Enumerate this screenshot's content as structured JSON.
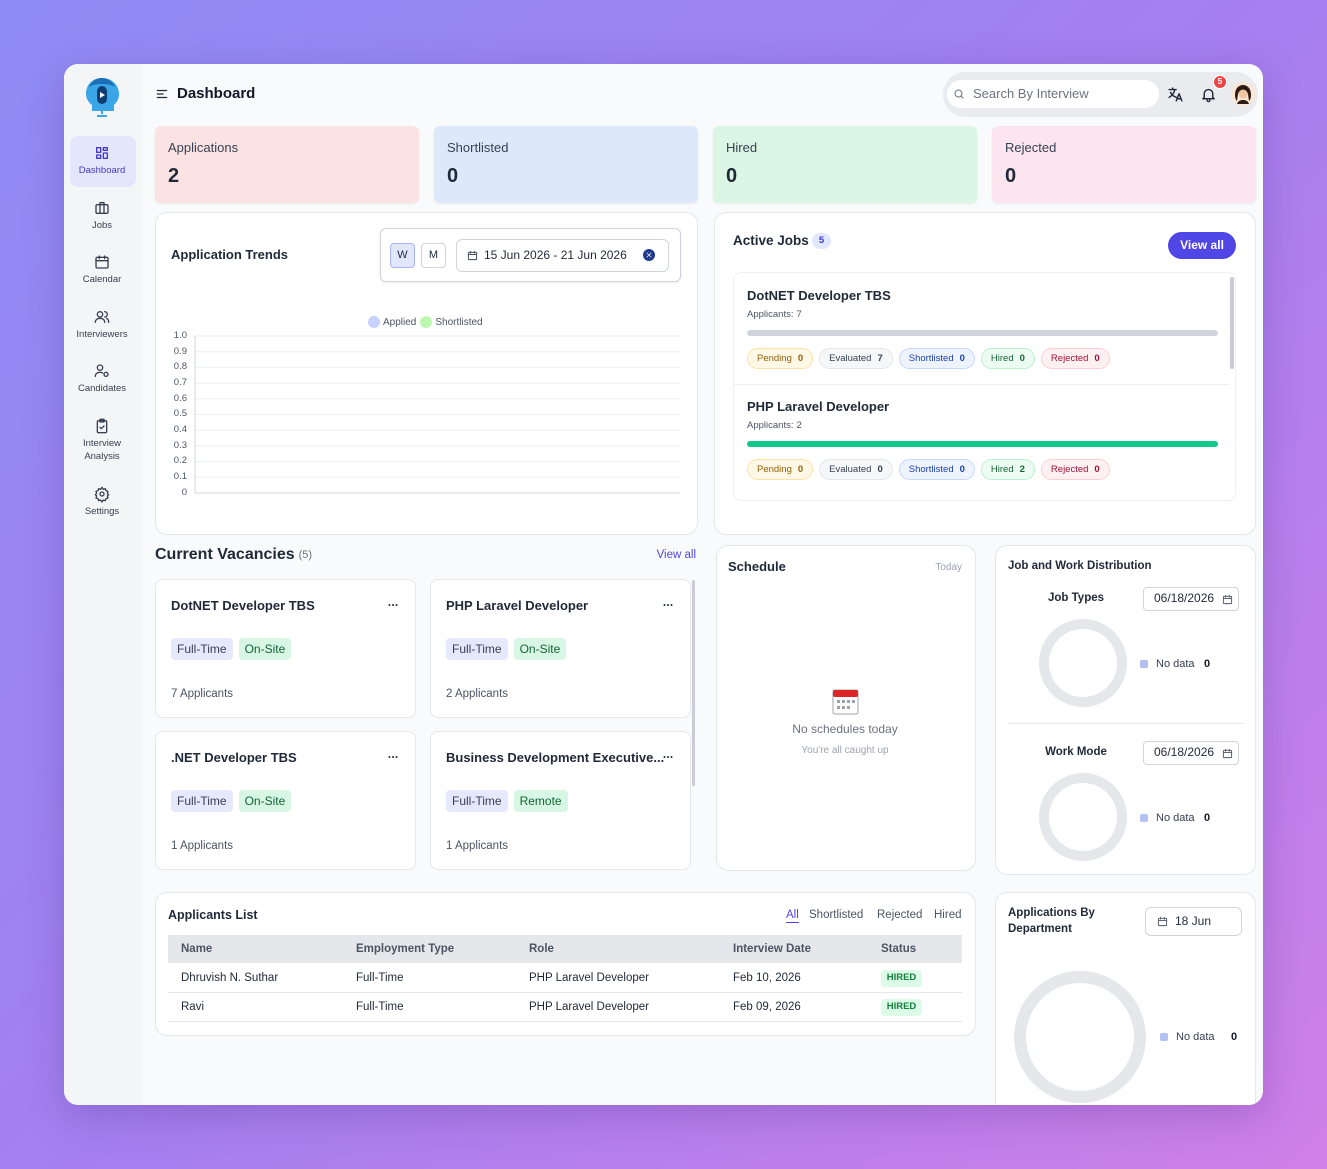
{
  "sidebar": {
    "items": [
      "Dashboard",
      "Jobs",
      "Calendar",
      "Interviewers",
      "Candidates",
      "Interview Analysis",
      "Settings"
    ]
  },
  "header": {
    "title": "Dashboard",
    "search_placeholder": "Search By Interview",
    "notification_count": 5
  },
  "stats": [
    {
      "label": "Applications",
      "value": 2
    },
    {
      "label": "Shortlisted",
      "value": 0
    },
    {
      "label": "Hired",
      "value": 0
    },
    {
      "label": "Rejected",
      "value": 0
    }
  ],
  "trends": {
    "title": "Application Trends",
    "periods": [
      "W",
      "M"
    ],
    "date_range": "15 Jun 2026 - 21 Jun 2026",
    "chart_data": {
      "type": "line",
      "series": [
        {
          "name": "Applied",
          "color": "#c7d2fe",
          "values": []
        },
        {
          "name": "Shortlisted",
          "color": "#bbf7b0",
          "values": []
        }
      ],
      "ylim": [
        0,
        1
      ],
      "yticks": [
        0,
        0.1,
        0.2,
        0.3,
        0.4,
        0.5,
        0.6,
        0.7,
        0.8,
        0.9,
        {
          "value": 1,
          "label": "1.0"
        }
      ],
      "grid": true
    }
  },
  "active_jobs": {
    "title": "Active Jobs",
    "count": 5,
    "view_all": "View all",
    "applicants_label": "Applicants:",
    "status_labels": [
      "Pending",
      "Evaluated",
      "Shortlisted",
      "Hired",
      "Rejected"
    ],
    "jobs": [
      {
        "title": "DotNET Developer TBS",
        "applicants": 7,
        "counts": [
          0,
          7,
          0,
          0,
          0
        ]
      },
      {
        "title": "PHP Laravel Developer",
        "applicants": 2,
        "counts": [
          0,
          0,
          0,
          2,
          0
        ]
      }
    ]
  },
  "vacancies": {
    "title": "Current Vacancies",
    "count_label": "(5)",
    "view_all": "View all",
    "cards": [
      {
        "title": "DotNET Developer TBS",
        "tags": [
          "Full-Time",
          "On-Site"
        ],
        "applicants": "7 Applicants"
      },
      {
        "title": "PHP Laravel Developer",
        "tags": [
          "Full-Time",
          "On-Site"
        ],
        "applicants": "2 Applicants"
      },
      {
        "title": ".NET Developer TBS",
        "tags": [
          "Full-Time",
          "On-Site"
        ],
        "applicants": "1 Applicants"
      },
      {
        "title": "Business Development Executive...",
        "tags": [
          "Full-Time",
          "Remote"
        ],
        "applicants": "1 Applicants"
      }
    ]
  },
  "schedule": {
    "title": "Schedule",
    "filter": "Today",
    "empty_title": "No schedules today",
    "empty_subtitle": "You're all caught up"
  },
  "distribution": {
    "title": "Job and Work Distribution",
    "sections": [
      {
        "title": "Job Types",
        "date": "06/18/2026",
        "legend": "No data",
        "value": 0
      },
      {
        "title": "Work Mode",
        "date": "06/18/2026",
        "legend": "No data",
        "value": 0
      }
    ]
  },
  "applicants": {
    "title": "Applicants List",
    "tabs": [
      "All",
      "Shortlisted",
      "Rejected",
      "Hired"
    ],
    "columns": [
      "Name",
      "Employment Type",
      "Role",
      "Interview Date",
      "Status"
    ],
    "rows": [
      [
        "Dhruvish N. Suthar",
        "Full-Time",
        "PHP Laravel Developer",
        "Feb 10, 2026",
        "HIRED"
      ],
      [
        "Ravi",
        "Full-Time",
        "PHP Laravel Developer",
        "Feb 09, 2026",
        "HIRED"
      ]
    ]
  },
  "department": {
    "title": "Applications By Department",
    "date": "18 Jun",
    "legend": "No data",
    "value": 0
  }
}
